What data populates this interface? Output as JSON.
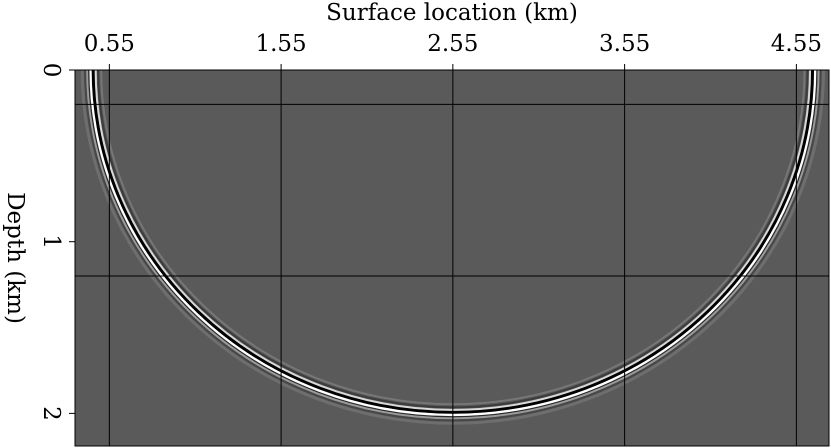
{
  "chart_data": {
    "type": "wavefront-image",
    "xlabel": "Surface location (km)",
    "ylabel": "Depth (km)",
    "xlim": [
      0.35,
      4.74
    ],
    "xticks": [
      0.55,
      1.55,
      2.55,
      3.55,
      4.55
    ],
    "ylim": [
      0,
      2.19
    ],
    "yticks": [
      0,
      1,
      2
    ],
    "ygrid": [
      0.2,
      1.2
    ],
    "background": "#5a5a5a",
    "wavefront": {
      "center_x": 2.55,
      "rx": 2.1,
      "ry": 2.0
    }
  }
}
